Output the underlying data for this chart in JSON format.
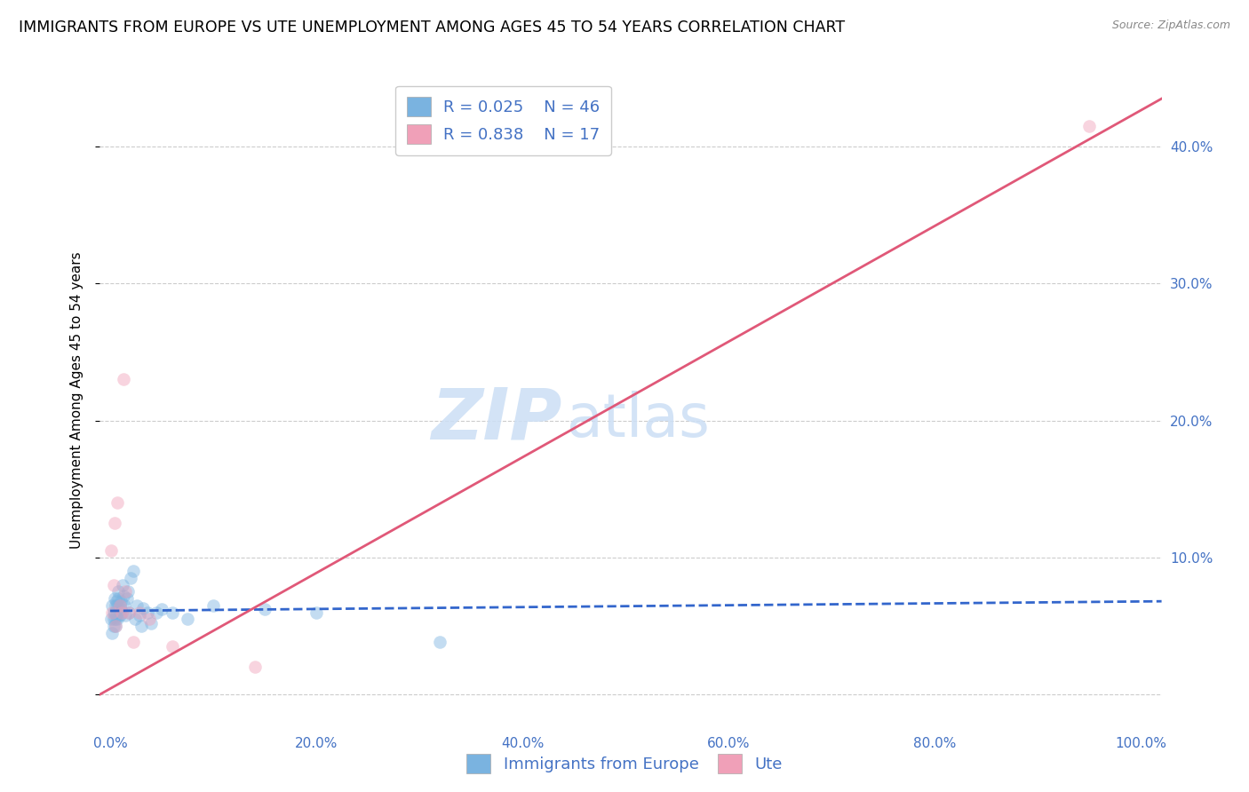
{
  "title": "IMMIGRANTS FROM EUROPE VS UTE UNEMPLOYMENT AMONG AGES 45 TO 54 YEARS CORRELATION CHART",
  "source": "Source: ZipAtlas.com",
  "ylabel": "Unemployment Among Ages 45 to 54 years",
  "xlim": [
    -0.01,
    1.02
  ],
  "ylim": [
    -0.025,
    0.455
  ],
  "x_ticks": [
    0.0,
    0.2,
    0.4,
    0.6,
    0.8,
    1.0
  ],
  "x_tick_labels": [
    "0.0%",
    "20.0%",
    "40.0%",
    "60.0%",
    "80.0%",
    "100.0%"
  ],
  "y_ticks": [
    0.0,
    0.1,
    0.2,
    0.3,
    0.4
  ],
  "y_tick_labels": [
    "",
    "10.0%",
    "20.0%",
    "30.0%",
    "40.0%"
  ],
  "blue_R": "0.025",
  "blue_N": "46",
  "pink_R": "0.838",
  "pink_N": "17",
  "blue_color": "#7ab3e0",
  "pink_color": "#f0a0b8",
  "blue_line_color": "#3366cc",
  "pink_line_color": "#e05878",
  "watermark_zip": "ZIP",
  "watermark_atlas": "atlas",
  "blue_scatter_x": [
    0.001,
    0.002,
    0.002,
    0.003,
    0.003,
    0.003,
    0.004,
    0.004,
    0.005,
    0.005,
    0.005,
    0.006,
    0.006,
    0.007,
    0.007,
    0.008,
    0.008,
    0.009,
    0.009,
    0.01,
    0.01,
    0.011,
    0.012,
    0.013,
    0.014,
    0.015,
    0.016,
    0.017,
    0.018,
    0.02,
    0.022,
    0.024,
    0.026,
    0.028,
    0.03,
    0.032,
    0.036,
    0.04,
    0.045,
    0.05,
    0.06,
    0.075,
    0.1,
    0.15,
    0.2,
    0.32
  ],
  "blue_scatter_y": [
    0.055,
    0.045,
    0.065,
    0.05,
    0.055,
    0.06,
    0.06,
    0.07,
    0.05,
    0.055,
    0.065,
    0.058,
    0.068,
    0.055,
    0.065,
    0.07,
    0.075,
    0.058,
    0.065,
    0.062,
    0.068,
    0.06,
    0.08,
    0.072,
    0.065,
    0.058,
    0.07,
    0.075,
    0.06,
    0.085,
    0.09,
    0.055,
    0.065,
    0.058,
    0.05,
    0.063,
    0.06,
    0.052,
    0.06,
    0.062,
    0.06,
    0.055,
    0.065,
    0.062,
    0.06,
    0.038
  ],
  "pink_scatter_x": [
    0.001,
    0.002,
    0.003,
    0.004,
    0.005,
    0.007,
    0.009,
    0.011,
    0.013,
    0.015,
    0.018,
    0.022,
    0.028,
    0.038,
    0.06,
    0.14,
    0.95
  ],
  "pink_scatter_y": [
    0.105,
    0.06,
    0.08,
    0.125,
    0.05,
    0.14,
    0.065,
    0.06,
    0.23,
    0.075,
    0.06,
    0.038,
    0.06,
    0.055,
    0.035,
    0.02,
    0.415
  ],
  "blue_trend_x": [
    0.0,
    1.02
  ],
  "blue_trend_y": [
    0.061,
    0.068
  ],
  "pink_trend_x": [
    -0.01,
    1.02
  ],
  "pink_trend_y": [
    0.0,
    0.435
  ],
  "background_color": "#ffffff",
  "grid_color": "#cccccc",
  "title_fontsize": 12.5,
  "axis_label_fontsize": 11,
  "tick_fontsize": 11,
  "legend_fontsize": 13,
  "watermark_fontsize_zip": 58,
  "watermark_fontsize_atlas": 48,
  "scatter_size": 110,
  "scatter_alpha": 0.45,
  "tick_color": "#4472c4"
}
